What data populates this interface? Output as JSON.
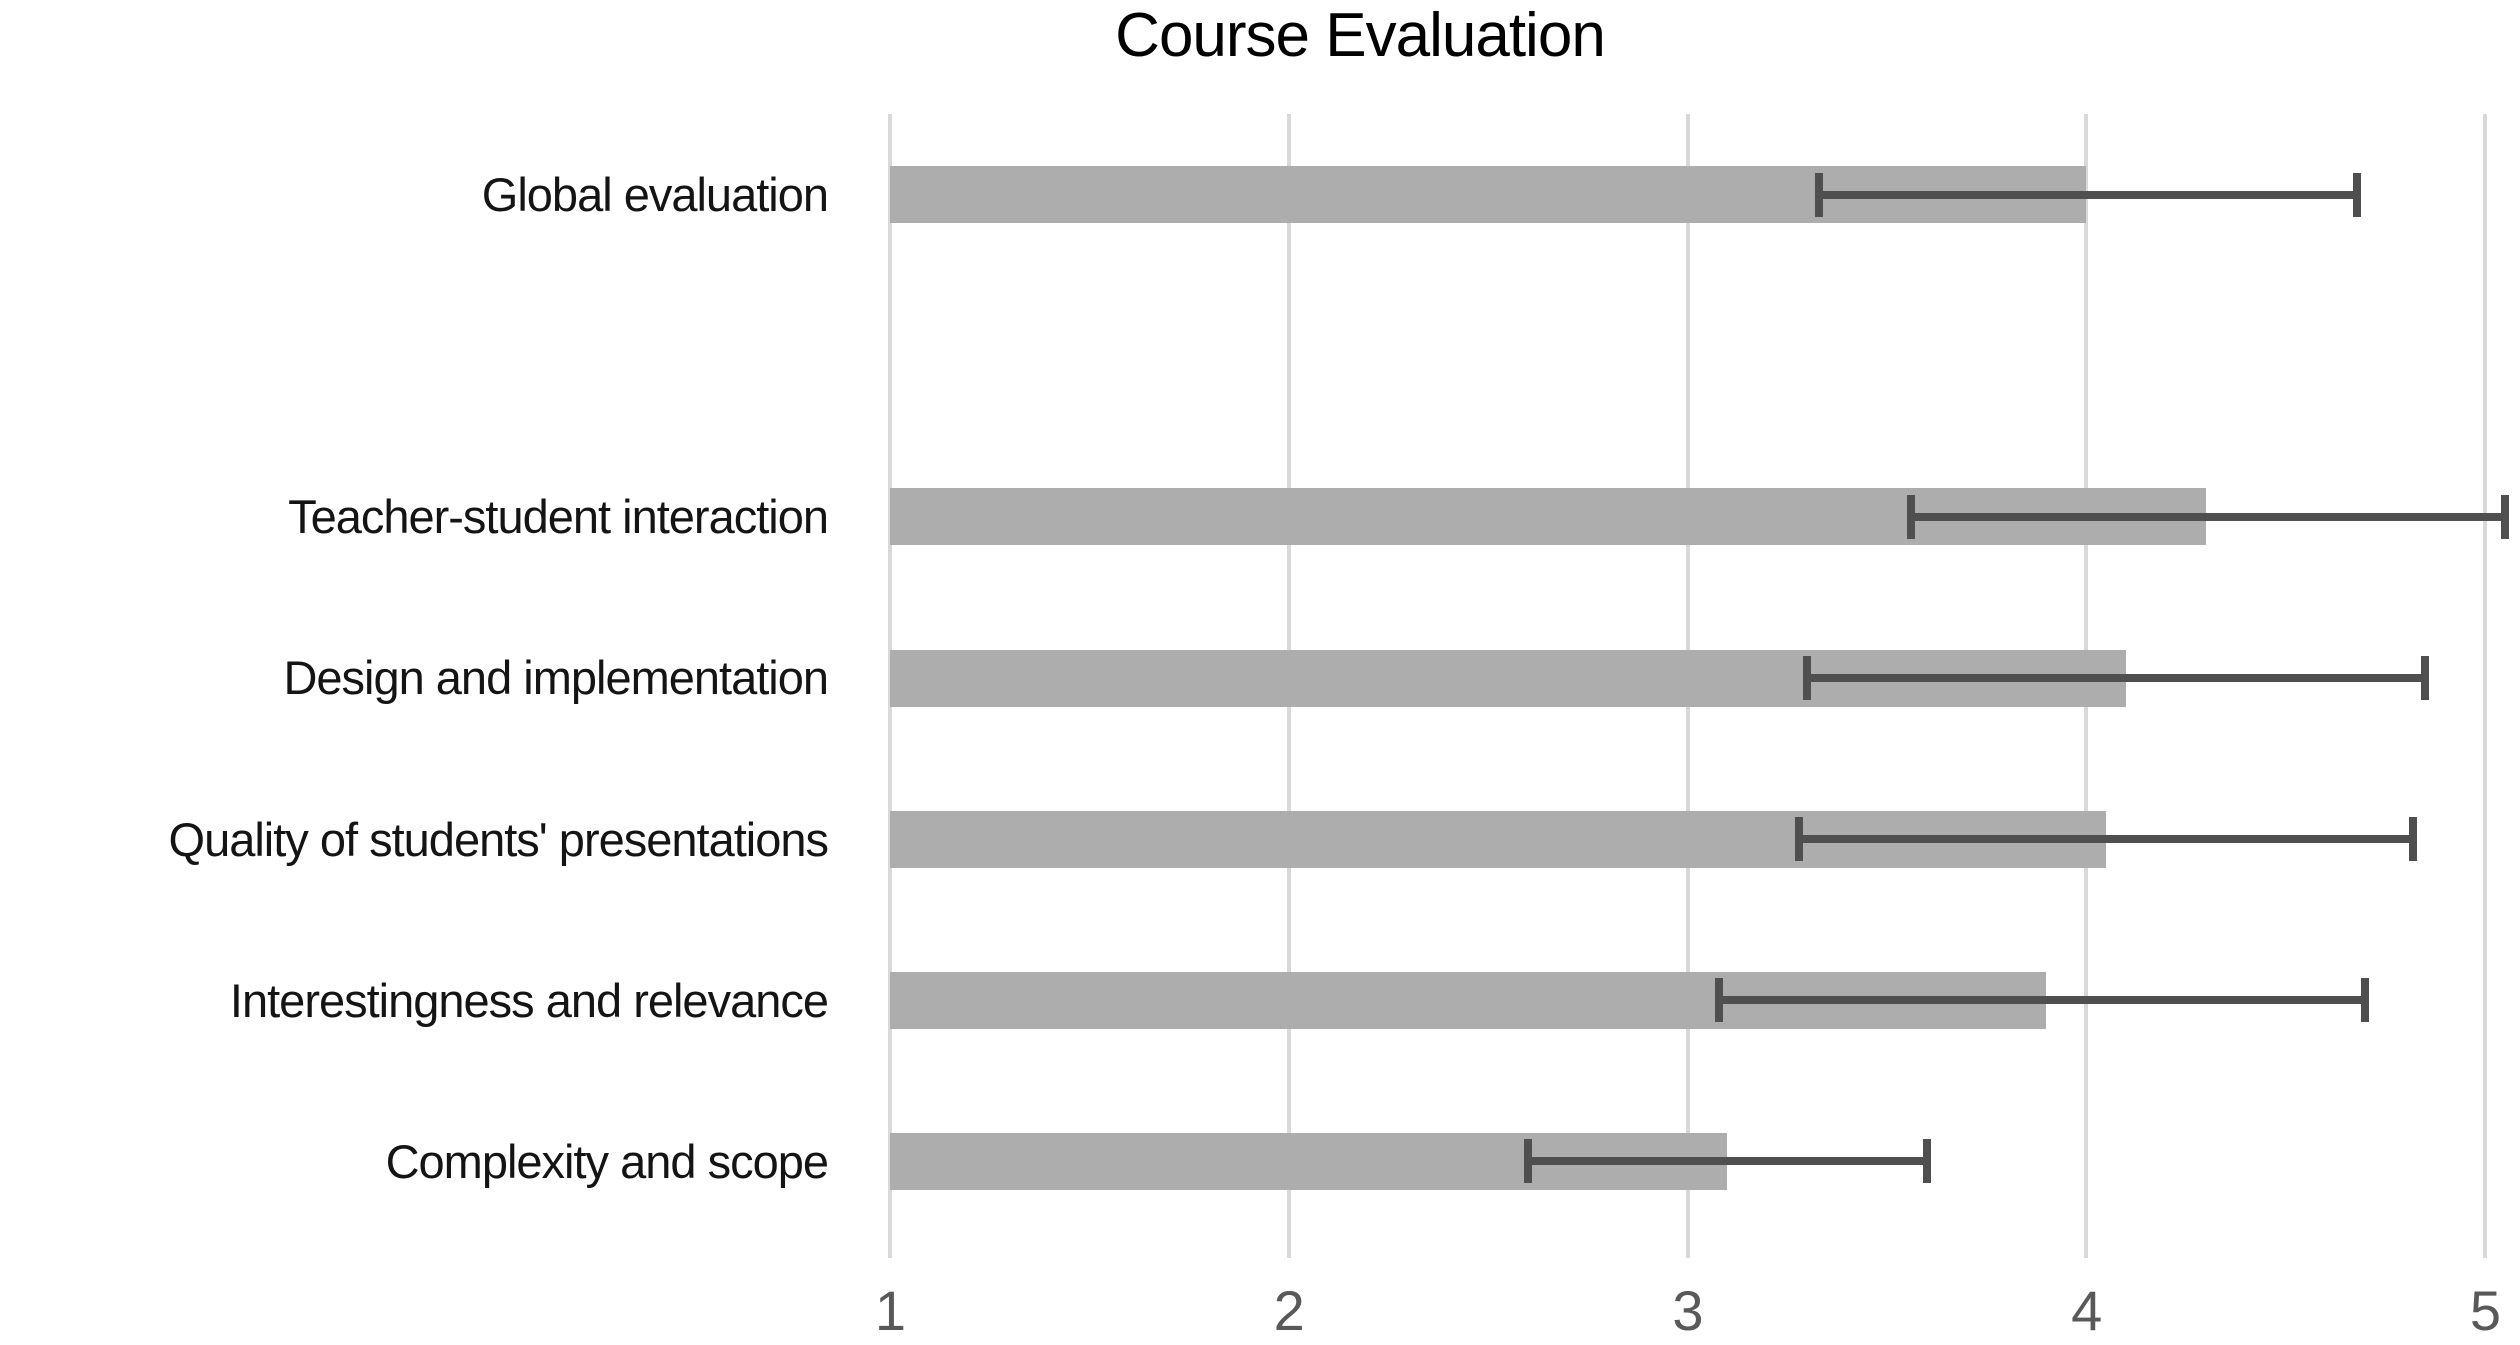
{
  "title": "Course Evaluation",
  "chart_data": {
    "type": "bar",
    "orientation": "horizontal",
    "title": "Course Evaluation",
    "categories": [
      "Global evaluation",
      "",
      "Teacher-student interaction",
      "Design and implementation",
      "Quality of students' presentations",
      "Interestingness and relevance",
      "Complexity and scope"
    ],
    "values": [
      4.0,
      null,
      4.3,
      4.1,
      4.05,
      3.9,
      3.1
    ],
    "error_low": [
      3.33,
      null,
      3.56,
      3.3,
      3.28,
      3.08,
      2.6
    ],
    "error_high": [
      4.68,
      null,
      5.05,
      4.85,
      4.82,
      4.7,
      3.6
    ],
    "xlabel": "",
    "ylabel": "",
    "xlim": [
      1,
      5
    ],
    "x_ticks": [
      "1",
      "2",
      "3",
      "4",
      "5"
    ],
    "grid": "vertical",
    "legend": "none",
    "bar_color": "#adadad",
    "error_bar_color": "#4f4f4f",
    "gridline_color": "#d9d9d9",
    "tick_label_color": "#595959"
  }
}
